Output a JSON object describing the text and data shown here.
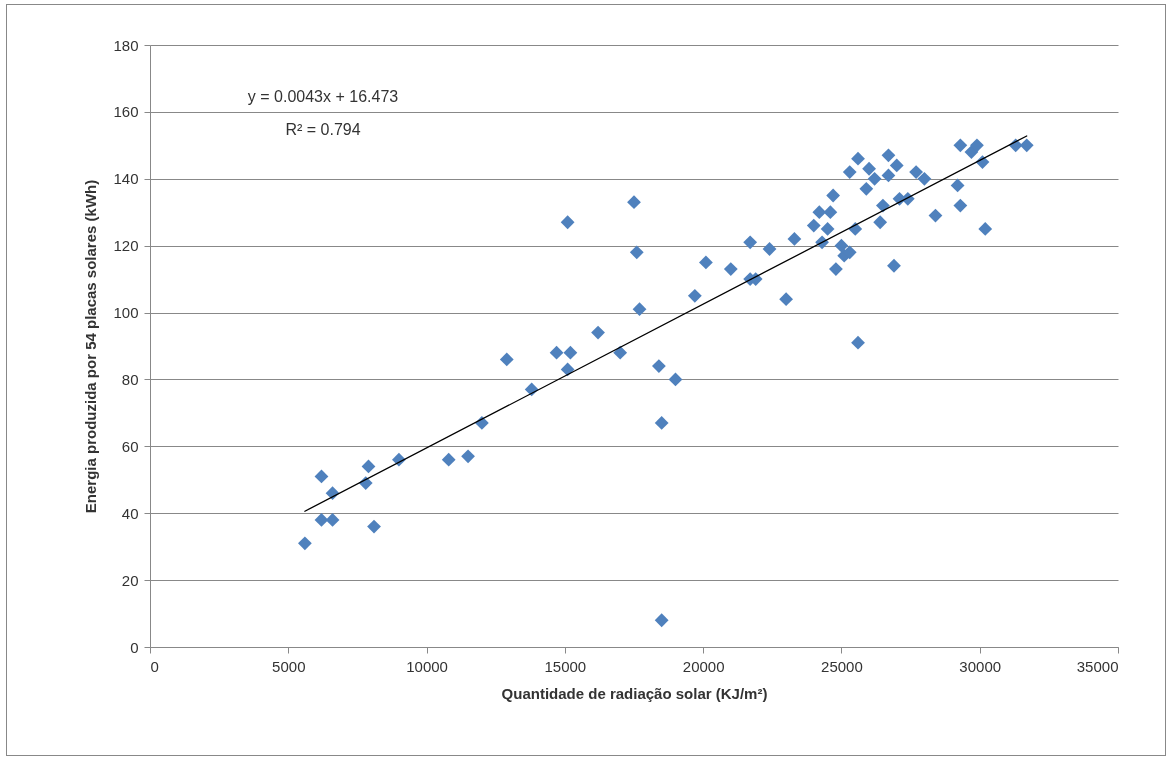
{
  "chart_data": {
    "type": "scatter",
    "xlabel": "Quantidade de radiação solar (KJ/m²)",
    "ylabel": "Energia produzida  por 54 placas solares (kWh)",
    "annotations": [
      "y = 0.0043x + 16.473",
      "R² = 0.794"
    ],
    "xlim": [
      0,
      35000
    ],
    "xticks": [
      0,
      5000,
      10000,
      15000,
      20000,
      25000,
      30000,
      35000
    ],
    "ylim": [
      0,
      180
    ],
    "yticks": [
      0,
      20,
      40,
      60,
      80,
      100,
      120,
      140,
      160,
      180
    ],
    "grid": "y",
    "series": [
      {
        "type": "scatter",
        "marker": "diamond",
        "color": "#4f81bd",
        "x": [
          5600,
          6200,
          6200,
          6600,
          6600,
          7800,
          7900,
          8100,
          9000,
          10800,
          11500,
          12000,
          12900,
          13800,
          14700,
          15100,
          15100,
          15200,
          16200,
          17000,
          17500,
          17600,
          17700,
          18400,
          18500,
          18500,
          19000,
          19700,
          20100,
          21000,
          21700,
          21700,
          21900,
          22400,
          23000,
          23300,
          24000,
          24200,
          24300,
          24500,
          24600,
          24700,
          24800,
          25000,
          25100,
          25300,
          25300,
          25500,
          25600,
          25600,
          25900,
          26000,
          26200,
          26400,
          26500,
          26700,
          26700,
          26900,
          27000,
          27100,
          27400,
          27700,
          28000,
          28400,
          29200,
          29300,
          29300,
          29700,
          29900,
          30100,
          30200,
          31300,
          31700
        ],
        "values": [
          31,
          51,
          38,
          46,
          38,
          49,
          54,
          36,
          56,
          56,
          57,
          67,
          86,
          77,
          88,
          127,
          83,
          88,
          94,
          88,
          133,
          118,
          101,
          84,
          67,
          8,
          80,
          105,
          115,
          113,
          121,
          110,
          110,
          119,
          104,
          122,
          126,
          130,
          121,
          125,
          130,
          135,
          113,
          120,
          117,
          118,
          142,
          125,
          146,
          91,
          137,
          143,
          140,
          127,
          132,
          147,
          141,
          114,
          144,
          134,
          134,
          142,
          140,
          129,
          138,
          132,
          150,
          148,
          150,
          145,
          125,
          150,
          150
        ]
      },
      {
        "type": "line",
        "marker": "none",
        "color": "#000000",
        "x": [
          5600,
          31700
        ],
        "values": [
          40.6,
          152.8
        ]
      }
    ]
  }
}
